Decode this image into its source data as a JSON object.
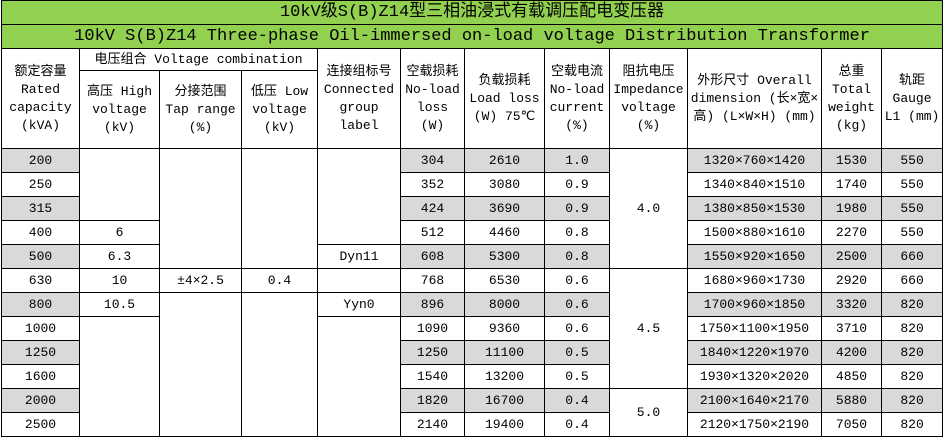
{
  "title_cn": "10kV级S(B)Z14型三相油浸式有载调压配电变压器",
  "title_en": "10kV S(B)Z14 Three-phase Oil-immersed on-load voltage Distribution Transformer",
  "headers": {
    "capacity": "额定容量 Rated capacity (kVA)",
    "voltage_combination": "电压组合 Voltage combination",
    "high_voltage": "高压 High voltage (kV)",
    "tap_range": "分接范围 Tap range (%)",
    "low_voltage": "低压 Low voltage (kV)",
    "connection_group": "连接组标号 Connected group label",
    "no_load_loss": "空载损耗 No-load loss (W)",
    "load_loss": "负载损耗 Load loss (W) 75℃",
    "no_load_current": "空载电流 No-load current (%)",
    "impedance": "阻抗电压 Impedance voltage (%)",
    "dimension": "外形尺寸 Overall dimension (长×宽×高) (L×W×H) (mm)",
    "weight": "总重 Total weight (kg)",
    "gauge": "轨距 Gauge L1 (mm)"
  },
  "rows": [
    [
      "200",
      "304",
      "2610",
      "1.0",
      "1320×760×1420",
      "1530",
      "550"
    ],
    [
      "250",
      "352",
      "3080",
      "0.9",
      "1340×840×1510",
      "1740",
      "550"
    ],
    [
      "315",
      "424",
      "3690",
      "0.9",
      "1380×850×1530",
      "1980",
      "550"
    ],
    [
      "400",
      "512",
      "4460",
      "0.8",
      "1500×880×1610",
      "2270",
      "550"
    ],
    [
      "500",
      "608",
      "5300",
      "0.8",
      "1550×920×1650",
      "2500",
      "660"
    ],
    [
      "630",
      "768",
      "6530",
      "0.6",
      "1680×960×1730",
      "2920",
      "660"
    ],
    [
      "800",
      "896",
      "8000",
      "0.6",
      "1700×960×1850",
      "3320",
      "820"
    ],
    [
      "1000",
      "1090",
      "9360",
      "0.6",
      "1750×1100×1950",
      "3710",
      "820"
    ],
    [
      "1250",
      "1250",
      "11100",
      "0.5",
      "1840×1220×1970",
      "4200",
      "820"
    ],
    [
      "1600",
      "1540",
      "13200",
      "0.5",
      "1930×1320×2020",
      "4850",
      "820"
    ],
    [
      "2000",
      "1820",
      "16700",
      "0.4",
      "2100×1640×2170",
      "5880",
      "820"
    ],
    [
      "2500",
      "2140",
      "19400",
      "0.4",
      "2120×1750×2190",
      "7050",
      "820"
    ]
  ],
  "high_voltage": [
    "6",
    "6.3",
    "10",
    "10.5"
  ],
  "tap_range": "±4×2.5",
  "low_voltage": "0.4",
  "connection_group": [
    "Dyn11",
    "Yyn0"
  ],
  "impedance": [
    "4.0",
    "4.5",
    "5.0"
  ]
}
